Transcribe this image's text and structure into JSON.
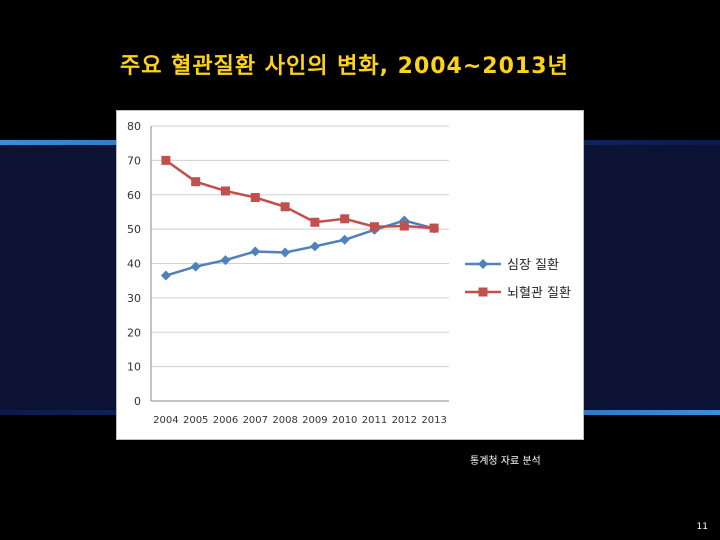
{
  "slide": {
    "title": "주요 혈관질환 사인의 변화, 2004~2013년",
    "source": "통계청 자료 분석",
    "page_number": "11"
  },
  "colors": {
    "background": "#000000",
    "title": "#ffd21a",
    "band": "#0b1233",
    "series_blue": "#4f81bd",
    "series_red": "#c0504d"
  },
  "chart_data": {
    "type": "line",
    "title": "",
    "xlabel": "",
    "ylabel": "",
    "x": [
      "2004",
      "2005",
      "2006",
      "2007",
      "2008",
      "2009",
      "2010",
      "2011",
      "2012",
      "2013"
    ],
    "ylim": [
      0,
      80
    ],
    "yticks": [
      0,
      10,
      20,
      30,
      40,
      50,
      60,
      70,
      80
    ],
    "grid": true,
    "legend": "right",
    "series": [
      {
        "name": "심장 질환",
        "marker": "diamond",
        "color": "#4f81bd",
        "values": [
          36.5,
          39.1,
          41.0,
          43.5,
          43.2,
          45.0,
          46.9,
          49.8,
          52.5,
          50.2
        ]
      },
      {
        "name": "뇌혈관 질환",
        "marker": "square",
        "color": "#c0504d",
        "values": [
          70.0,
          63.8,
          61.1,
          59.2,
          56.5,
          52.0,
          53.0,
          50.7,
          50.9,
          50.3
        ]
      }
    ]
  }
}
